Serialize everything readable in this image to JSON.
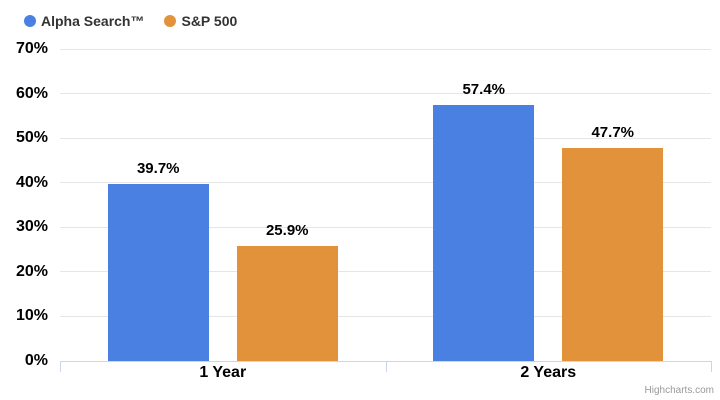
{
  "chart_data": {
    "type": "bar",
    "title": "",
    "categories": [
      "1 Year",
      "2 Years"
    ],
    "series": [
      {
        "name": "Alpha Search™",
        "color": "#4a80e2",
        "values": [
          39.7,
          57.4
        ],
        "labels": [
          "39.7%",
          "57.4%"
        ]
      },
      {
        "name": "S&P 500",
        "color": "#e2923b",
        "values": [
          25.9,
          47.7
        ],
        "labels": [
          "25.9%",
          "47.7%"
        ]
      }
    ],
    "ylim": [
      0,
      70
    ],
    "y_ticks": [
      0,
      10,
      20,
      30,
      40,
      50,
      60,
      70
    ],
    "y_tick_labels": [
      "0%",
      "10%",
      "20%",
      "30%",
      "40%",
      "50%",
      "60%",
      "70%"
    ],
    "grid": true,
    "legend_position": "top-left",
    "value_suffix": "%",
    "xlabel": "",
    "ylabel": ""
  },
  "credits": {
    "label": "Highcharts.com"
  },
  "colors": {
    "axis_line": "#ccd6eb",
    "gridline": "#e6e6e6",
    "axis_label": "#000000",
    "legend_text": "#333333",
    "credits_text": "#999999"
  }
}
